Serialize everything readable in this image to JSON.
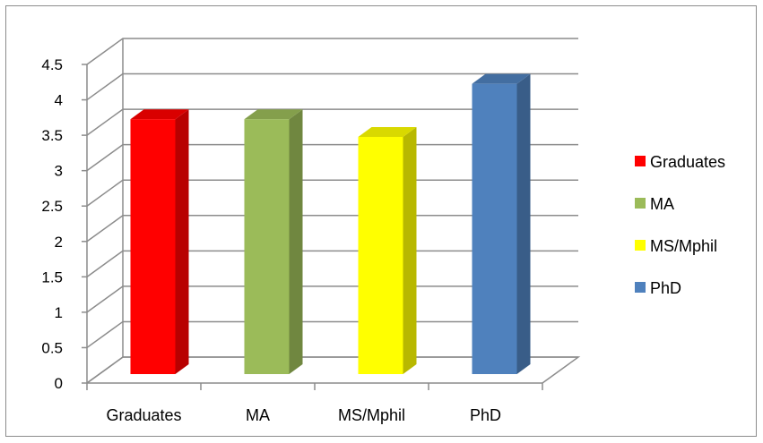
{
  "chart_data": {
    "type": "bar",
    "title": "",
    "xlabel": "",
    "ylabel": "",
    "categories": [
      "Graduates",
      "MA",
      "MS/Mphil",
      "PhD"
    ],
    "values": [
      3.6,
      3.6,
      3.35,
      4.1
    ],
    "colors": [
      "#ff0000",
      "#9bbb59",
      "#ffff00",
      "#4f81bd"
    ],
    "ylim": [
      0,
      4.5
    ],
    "yticks": [
      "0",
      "0.5",
      "1",
      "1.5",
      "2",
      "2.5",
      "3",
      "3.5",
      "4",
      "4.5"
    ],
    "grid": true,
    "legend_position": "right",
    "legend": [
      "Graduates",
      "MA",
      "MS/Mphil",
      "PhD"
    ]
  }
}
